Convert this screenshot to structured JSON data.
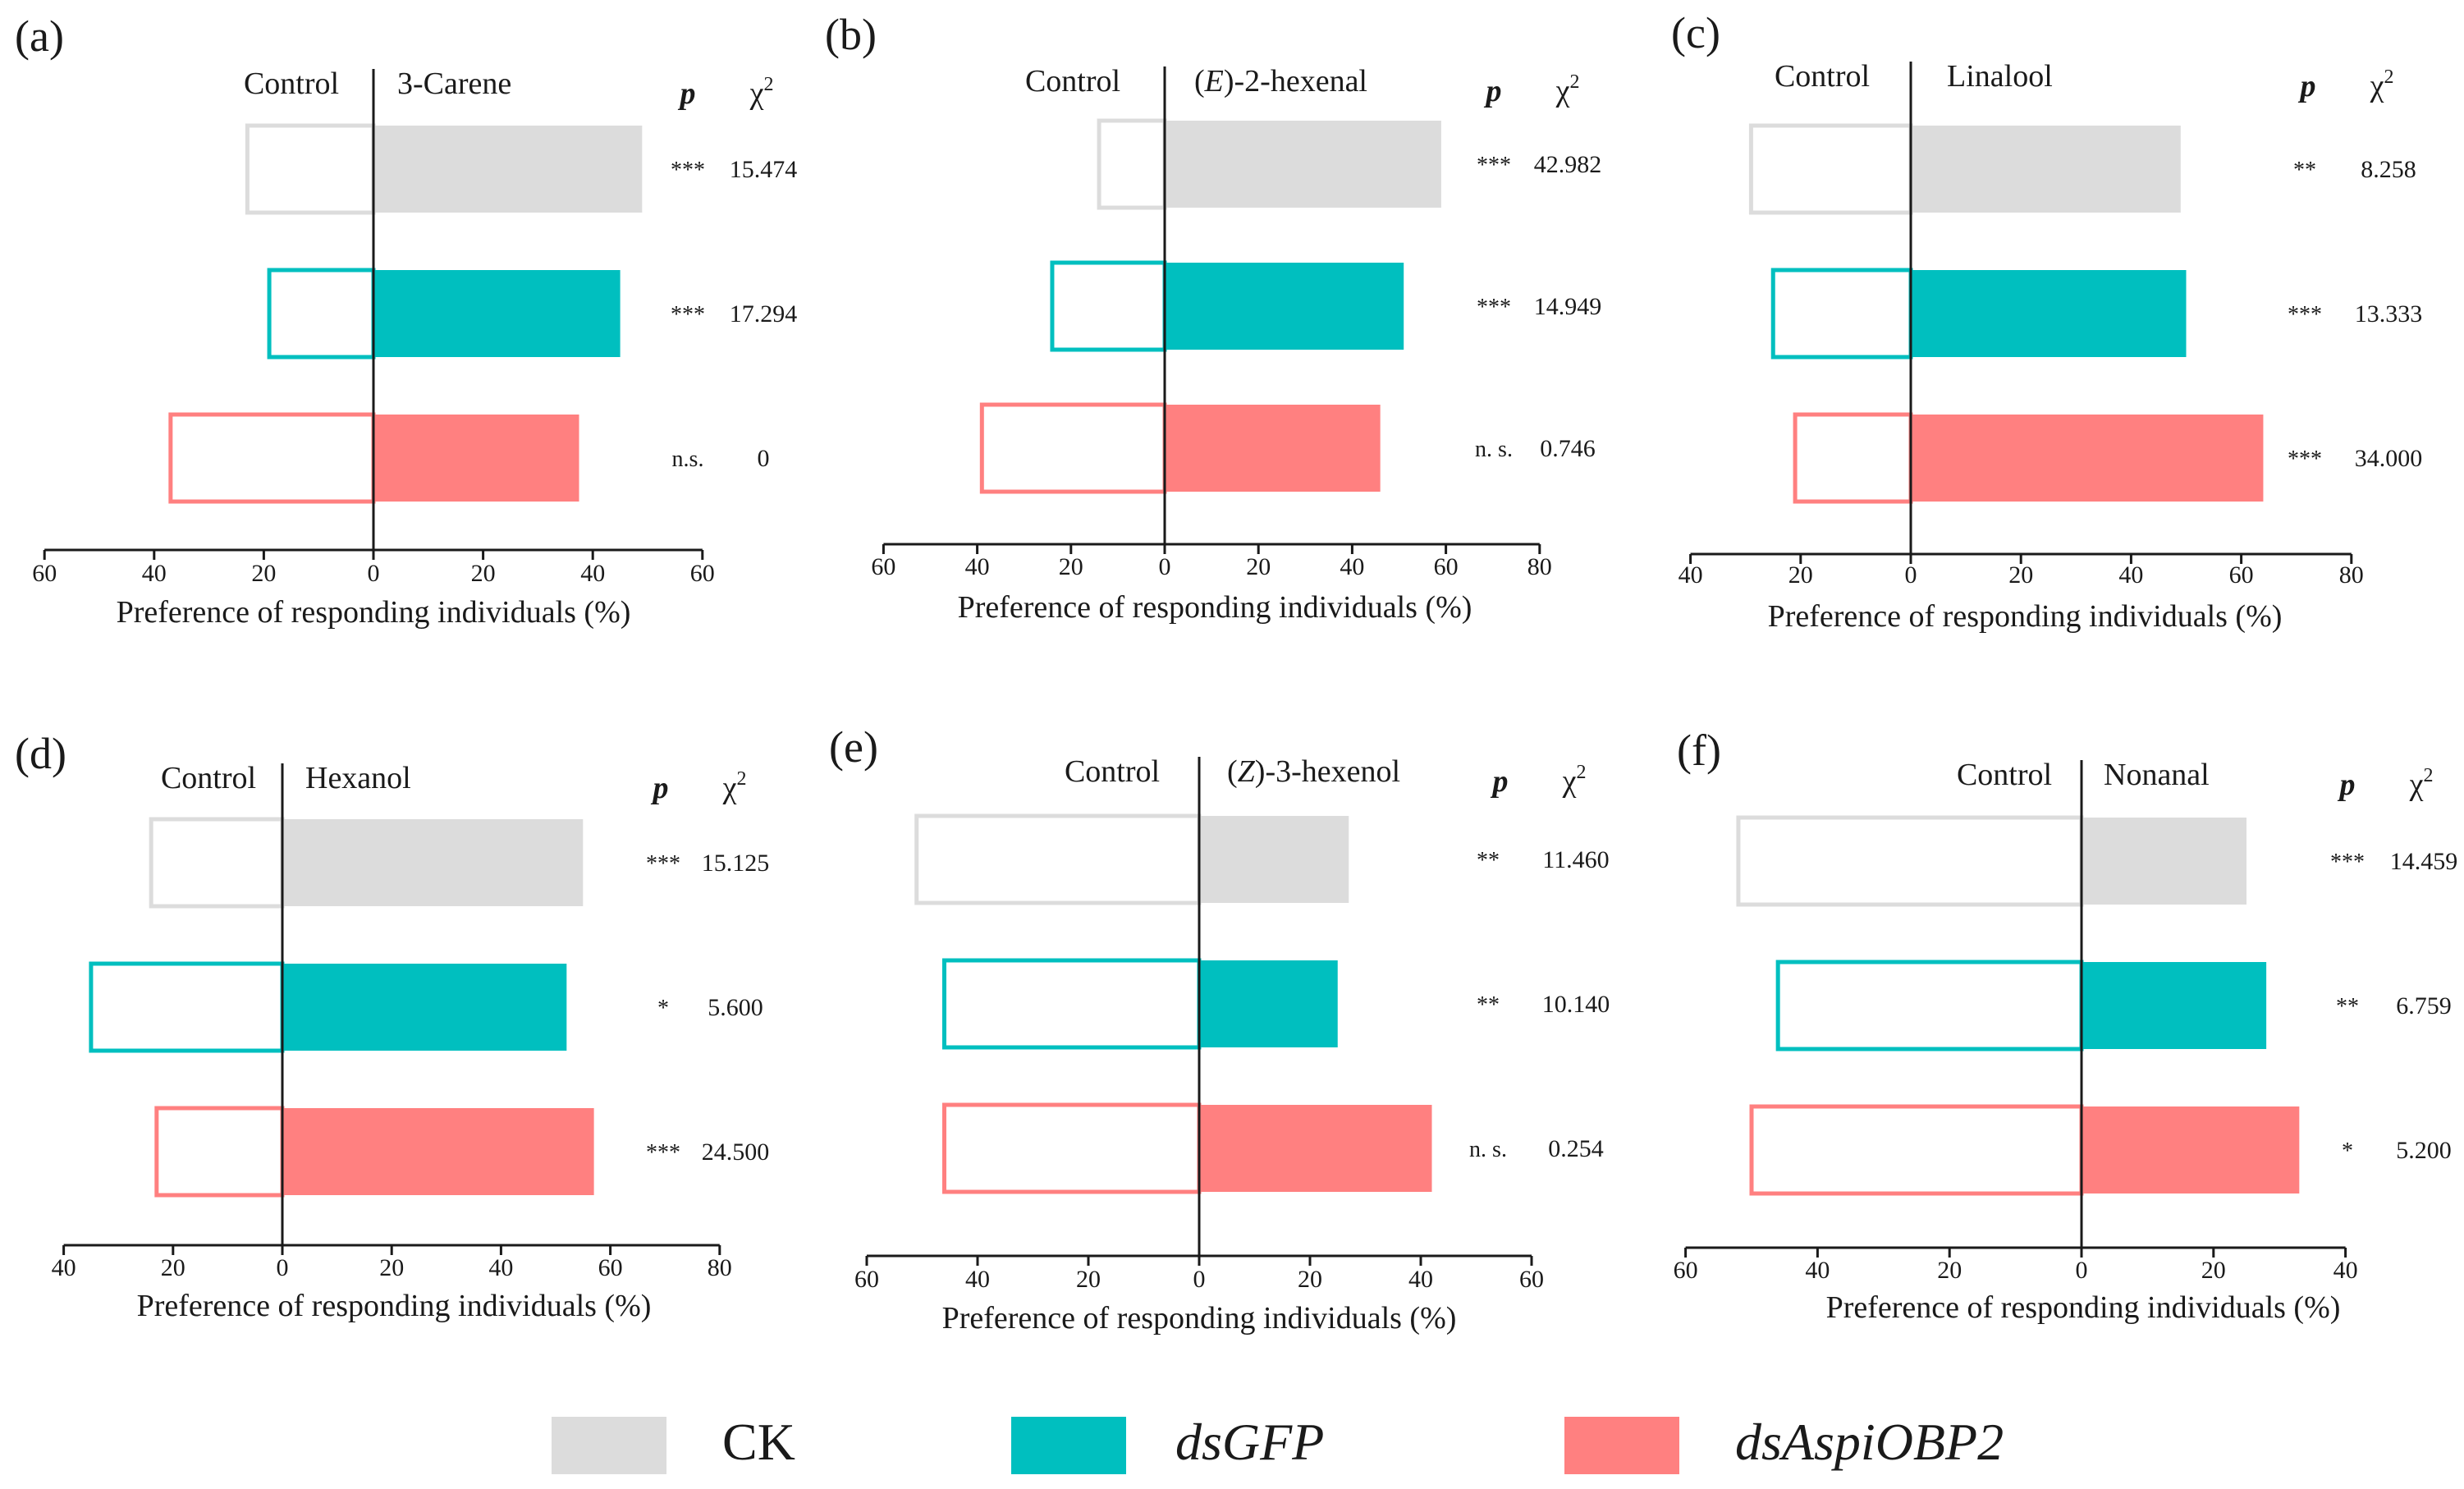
{
  "figure": {
    "colors": {
      "CK": "#dcdcdc",
      "dsGFP": "#00bfbf",
      "dsAspiOBP2": "#ff8080",
      "axis": "#1a1a1a"
    },
    "legend": [
      {
        "label": "CK",
        "key": "CK",
        "italic": false
      },
      {
        "label": "dsGFP",
        "key": "dsGFP",
        "italic": true
      },
      {
        "label": "dsAspiOBP2",
        "key": "dsAspiOBP2",
        "italic": true
      }
    ],
    "common": {
      "control_label": "Control",
      "p_header": "p",
      "chi_header": "χ",
      "chi_sup": "2",
      "xlabel": "Preference of responding individuals (%)"
    }
  },
  "chart_data": [
    {
      "type": "bar",
      "panel": "(a)",
      "treatment": "3-Carene",
      "xlim_left": 60,
      "xlim_right": 60,
      "xticks_left": [
        60,
        40,
        20
      ],
      "xticks_right": [
        0,
        20,
        40,
        60
      ],
      "series": [
        {
          "name": "CK",
          "control": 23,
          "treatment": 49,
          "p": "***",
          "chi2": "15.474"
        },
        {
          "name": "dsGFP",
          "control": 19,
          "treatment": 45,
          "p": "***",
          "chi2": "17.294"
        },
        {
          "name": "dsAspiOBP2",
          "control": 37,
          "treatment": 37.5,
          "p": "n.s.",
          "chi2": "0"
        }
      ]
    },
    {
      "type": "bar",
      "panel": "(b)",
      "treatment_prefix": "(",
      "treatment_italic": "E",
      "treatment_suffix": ")-2-hexenal",
      "xlim_left": 60,
      "xlim_right": 80,
      "xticks_left": [
        60,
        40,
        20
      ],
      "xticks_right": [
        0,
        20,
        40,
        60,
        80
      ],
      "series": [
        {
          "name": "CK",
          "control": 14,
          "treatment": 59,
          "p": "***",
          "chi2": "42.982"
        },
        {
          "name": "dsGFP",
          "control": 24,
          "treatment": 51,
          "p": "***",
          "chi2": "14.949"
        },
        {
          "name": "dsAspiOBP2",
          "control": 39,
          "treatment": 46,
          "p": "n. s.",
          "chi2": "0.746"
        }
      ]
    },
    {
      "type": "bar",
      "panel": "(c)",
      "treatment": "Linalool",
      "xlim_left": 40,
      "xlim_right": 80,
      "xticks_left": [
        40,
        20
      ],
      "xticks_right": [
        0,
        20,
        40,
        60,
        80
      ],
      "series": [
        {
          "name": "CK",
          "control": 29,
          "treatment": 49,
          "p": "**",
          "chi2": "8.258"
        },
        {
          "name": "dsGFP",
          "control": 25,
          "treatment": 50,
          "p": "***",
          "chi2": "13.333"
        },
        {
          "name": "dsAspiOBP2",
          "control": 21,
          "treatment": 64,
          "p": "***",
          "chi2": "34.000"
        }
      ]
    },
    {
      "type": "bar",
      "panel": "(d)",
      "treatment": "Hexanol",
      "xlim_left": 40,
      "xlim_right": 80,
      "xticks_left": [
        40,
        20
      ],
      "xticks_right": [
        0,
        20,
        40,
        60,
        80
      ],
      "series": [
        {
          "name": "CK",
          "control": 24,
          "treatment": 55,
          "p": "***",
          "chi2": "15.125"
        },
        {
          "name": "dsGFP",
          "control": 35,
          "treatment": 52,
          "p": "*",
          "chi2": "5.600"
        },
        {
          "name": "dsAspiOBP2",
          "control": 23,
          "treatment": 57,
          "p": "***",
          "chi2": "24.500"
        }
      ]
    },
    {
      "type": "bar",
      "panel": "(e)",
      "treatment_prefix": "(",
      "treatment_italic": "Z",
      "treatment_suffix": ")-3-hexenol",
      "xlim_left": 60,
      "xlim_right": 60,
      "xticks_left": [
        60,
        40,
        20
      ],
      "xticks_right": [
        0,
        20,
        40,
        60
      ],
      "series": [
        {
          "name": "CK",
          "control": 51,
          "treatment": 27,
          "p": "**",
          "chi2": "11.460"
        },
        {
          "name": "dsGFP",
          "control": 46,
          "treatment": 25,
          "p": "**",
          "chi2": "10.140"
        },
        {
          "name": "dsAspiOBP2",
          "control": 46,
          "treatment": 42,
          "p": "n. s.",
          "chi2": "0.254"
        }
      ]
    },
    {
      "type": "bar",
      "panel": "(f)",
      "treatment": "Nonanal",
      "xlim_left": 60,
      "xlim_right": 40,
      "xticks_left": [
        60,
        40,
        20
      ],
      "xticks_right": [
        0,
        20,
        40
      ],
      "series": [
        {
          "name": "CK",
          "control": 52,
          "treatment": 25,
          "p": "***",
          "chi2": "14.459"
        },
        {
          "name": "dsGFP",
          "control": 46,
          "treatment": 28,
          "p": "**",
          "chi2": "6.759"
        },
        {
          "name": "dsAspiOBP2",
          "control": 50,
          "treatment": 33,
          "p": "*",
          "chi2": "5.200"
        }
      ]
    }
  ]
}
